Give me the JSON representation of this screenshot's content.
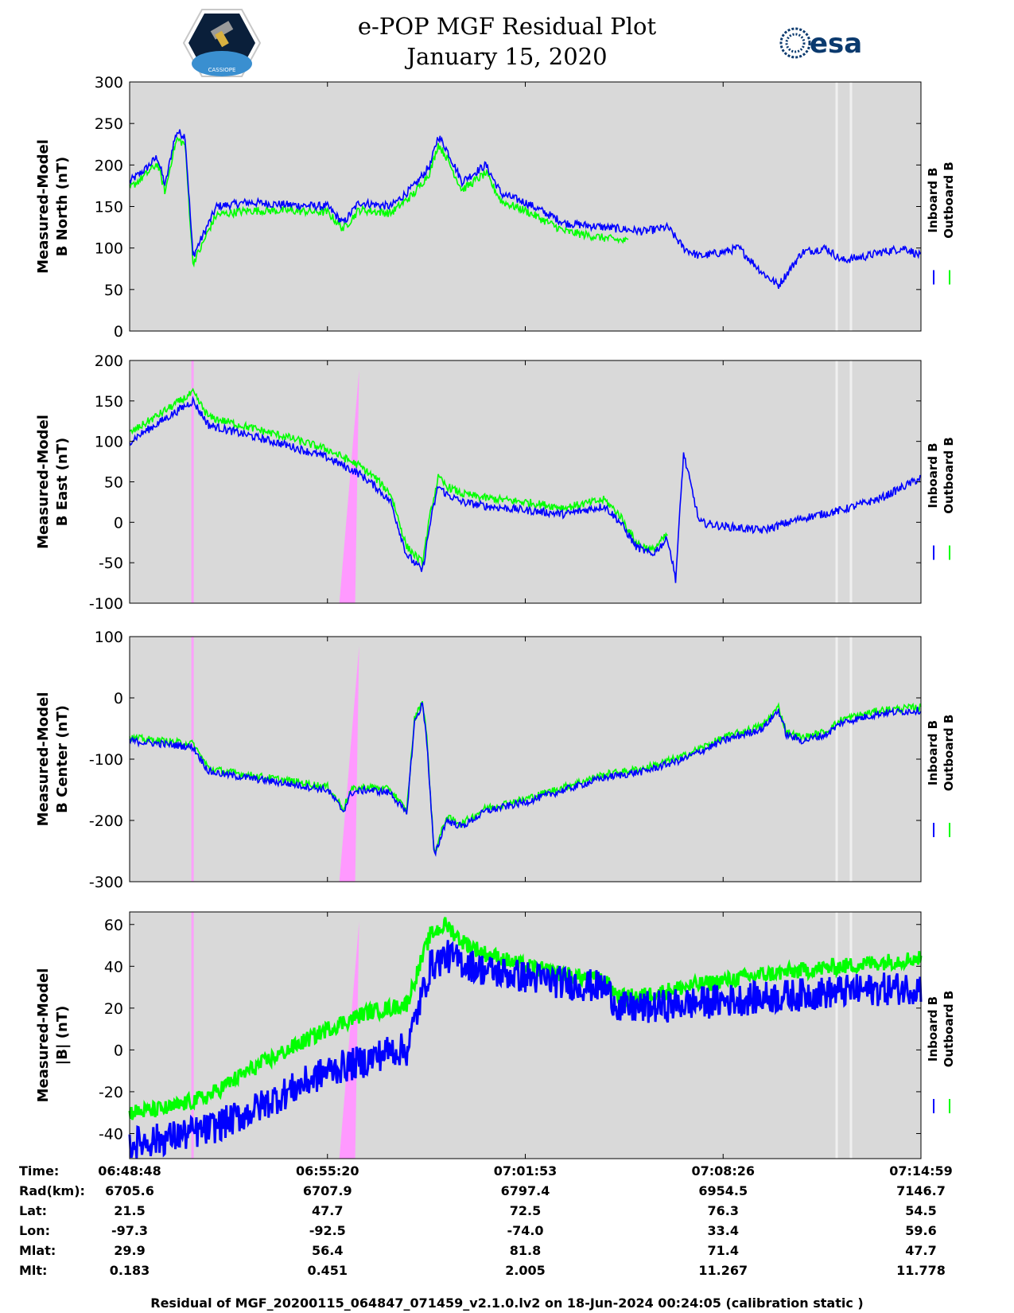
{
  "header": {
    "title": "e-POP MGF Residual Plot",
    "date": "January 15, 2020",
    "left_logo_text": "CASSIOPE",
    "right_logo_text": "esa"
  },
  "colors": {
    "background": "#d9d9d9",
    "inboard": "#0000ff",
    "outboard": "#00ff00",
    "highlight": "#ff99ff",
    "gap": "#f0f0f0"
  },
  "chart_data": [
    {
      "type": "line",
      "ylabel_line1": "Measured-Model",
      "ylabel_line2": "B North (nT)",
      "ylim": [
        0,
        300
      ],
      "yticks": [
        "300",
        "250",
        "200",
        "150",
        "100",
        "50",
        "0"
      ],
      "xlim": [
        0,
        1
      ],
      "legend": [
        "Inboard B",
        "Outboard B"
      ],
      "series": [
        {
          "name": "Inboard B",
          "x": [
            0,
            0.02,
            0.035,
            0.045,
            0.055,
            0.06,
            0.07,
            0.08,
            0.09,
            0.1,
            0.11,
            0.15,
            0.2,
            0.25,
            0.27,
            0.29,
            0.33,
            0.36,
            0.38,
            0.39,
            0.4,
            0.42,
            0.45,
            0.47,
            0.5,
            0.52,
            0.55,
            0.6,
            0.65,
            0.68,
            0.7,
            0.72,
            0.75,
            0.77,
            0.8,
            0.82,
            0.85,
            0.88,
            0.9,
            0.93,
            0.95,
            0.98,
            1.0
          ],
          "y": [
            180,
            195,
            210,
            175,
            225,
            240,
            235,
            90,
            110,
            130,
            150,
            155,
            152,
            150,
            130,
            155,
            150,
            175,
            200,
            235,
            220,
            180,
            200,
            165,
            155,
            145,
            130,
            125,
            120,
            125,
            100,
            90,
            95,
            100,
            70,
            55,
            95,
            100,
            85,
            90,
            95,
            100,
            90
          ],
          "noise": 5
        },
        {
          "name": "Outboard B",
          "x": [
            0,
            0.02,
            0.035,
            0.045,
            0.055,
            0.06,
            0.07,
            0.08,
            0.09,
            0.1,
            0.11,
            0.15,
            0.2,
            0.25,
            0.27,
            0.29,
            0.33,
            0.36,
            0.38,
            0.39,
            0.4,
            0.42,
            0.45,
            0.47,
            0.5,
            0.52,
            0.55,
            0.6,
            0.63
          ],
          "y": [
            172,
            188,
            202,
            167,
            216,
            231,
            225,
            82,
            100,
            122,
            140,
            145,
            145,
            143,
            123,
            146,
            142,
            166,
            192,
            225,
            210,
            170,
            190,
            156,
            145,
            135,
            120,
            112,
            108
          ],
          "noise": 5
        }
      ]
    },
    {
      "type": "line",
      "ylabel_line1": "Measured-Model",
      "ylabel_line2": "B East (nT)",
      "ylim": [
        -100,
        200
      ],
      "yticks": [
        "200",
        "150",
        "100",
        "50",
        "0",
        "-50",
        "-100"
      ],
      "xlim": [
        0,
        1
      ],
      "legend": [
        "Inboard B",
        "Outboard B"
      ],
      "series": [
        {
          "name": "Inboard B",
          "x": [
            0,
            0.04,
            0.08,
            0.1,
            0.14,
            0.2,
            0.25,
            0.27,
            0.29,
            0.31,
            0.33,
            0.35,
            0.37,
            0.38,
            0.39,
            0.4,
            0.42,
            0.45,
            0.5,
            0.55,
            0.6,
            0.62,
            0.64,
            0.66,
            0.68,
            0.69,
            0.7,
            0.72,
            0.75,
            0.8,
            0.85,
            0.9,
            0.95,
            1.0
          ],
          "y": [
            100,
            125,
            150,
            120,
            110,
            95,
            80,
            70,
            60,
            45,
            25,
            -40,
            -60,
            0,
            45,
            35,
            25,
            20,
            15,
            10,
            20,
            0,
            -30,
            -40,
            -20,
            -70,
            85,
            0,
            -5,
            -10,
            5,
            15,
            30,
            55
          ],
          "noise": 5
        },
        {
          "name": "Outboard B",
          "x": [
            0,
            0.04,
            0.08,
            0.1,
            0.14,
            0.2,
            0.25,
            0.27,
            0.29,
            0.31,
            0.33,
            0.35,
            0.37,
            0.38,
            0.39,
            0.4,
            0.42,
            0.45,
            0.5,
            0.55,
            0.6,
            0.62,
            0.64,
            0.66,
            0.68
          ],
          "y": [
            110,
            135,
            160,
            130,
            120,
            105,
            90,
            80,
            70,
            55,
            35,
            -30,
            -50,
            10,
            55,
            45,
            35,
            30,
            25,
            18,
            28,
            8,
            -25,
            -35,
            -15
          ],
          "noise": 5
        }
      ]
    },
    {
      "type": "line",
      "ylabel_line1": "Measured-Model",
      "ylabel_line2": "B Center (nT)",
      "ylim": [
        -300,
        100
      ],
      "yticks": [
        "100",
        "0",
        "-100",
        "-200",
        "-300"
      ],
      "xlim": [
        0,
        1
      ],
      "legend": [
        "Inboard B",
        "Outboard B"
      ],
      "series": [
        {
          "name": "Inboard B",
          "x": [
            0,
            0.04,
            0.08,
            0.1,
            0.12,
            0.2,
            0.25,
            0.27,
            0.28,
            0.3,
            0.33,
            0.35,
            0.36,
            0.37,
            0.375,
            0.385,
            0.4,
            0.42,
            0.45,
            0.5,
            0.55,
            0.6,
            0.65,
            0.7,
            0.75,
            0.8,
            0.82,
            0.83,
            0.85,
            0.88,
            0.9,
            0.95,
            1.0
          ],
          "y": [
            -70,
            -75,
            -80,
            -120,
            -125,
            -140,
            -150,
            -185,
            -155,
            -150,
            -155,
            -190,
            -40,
            -10,
            -60,
            -260,
            -200,
            -210,
            -185,
            -170,
            -150,
            -130,
            -120,
            -100,
            -70,
            -50,
            -20,
            -60,
            -70,
            -60,
            -40,
            -25,
            -20
          ],
          "noise": 6
        },
        {
          "name": "Outboard B",
          "x": [
            0,
            0.04,
            0.08,
            0.1,
            0.12,
            0.2,
            0.25,
            0.27,
            0.28,
            0.3,
            0.33,
            0.35,
            0.36,
            0.37,
            0.375,
            0.385,
            0.4,
            0.42,
            0.45,
            0.5,
            0.55,
            0.6,
            0.65,
            0.7,
            0.75,
            0.8,
            0.82,
            0.83,
            0.85,
            0.88,
            0.9,
            0.95,
            1.0
          ],
          "y": [
            -65,
            -70,
            -75,
            -115,
            -120,
            -135,
            -145,
            -180,
            -150,
            -145,
            -150,
            -185,
            -35,
            -5,
            -55,
            -255,
            -195,
            -205,
            -180,
            -165,
            -145,
            -125,
            -115,
            -95,
            -65,
            -45,
            -15,
            -55,
            -65,
            -55,
            -35,
            -20,
            -15
          ],
          "noise": 6
        }
      ]
    },
    {
      "type": "line",
      "ylabel_line1": "Measured-Model",
      "ylabel_line2": "|B| (nT)",
      "ylim": [
        -52,
        66
      ],
      "yticks": [
        "60",
        "40",
        "20",
        "0",
        "-20",
        "-40"
      ],
      "xlim": [
        0,
        1
      ],
      "legend": [
        "Inboard B",
        "Outboard B"
      ],
      "series": [
        {
          "name": "Inboard B",
          "x": [
            0,
            0.05,
            0.1,
            0.15,
            0.2,
            0.25,
            0.3,
            0.33,
            0.35,
            0.38,
            0.4,
            0.42,
            0.45,
            0.5,
            0.55,
            0.6,
            0.62,
            0.65,
            0.7,
            0.8,
            0.9,
            1.0
          ],
          "y": [
            -45,
            -42,
            -38,
            -30,
            -20,
            -10,
            -5,
            0,
            0,
            40,
            45,
            42,
            38,
            35,
            32,
            30,
            20,
            20,
            22,
            25,
            28,
            30
          ],
          "noise": 8
        },
        {
          "name": "Outboard B",
          "x": [
            0,
            0.05,
            0.1,
            0.15,
            0.2,
            0.25,
            0.3,
            0.33,
            0.35,
            0.38,
            0.4,
            0.42,
            0.45,
            0.5,
            0.55,
            0.6,
            0.62,
            0.65,
            0.7,
            0.8,
            0.9,
            1.0
          ],
          "y": [
            -30,
            -28,
            -22,
            -10,
            0,
            10,
            18,
            20,
            22,
            55,
            60,
            52,
            46,
            40,
            36,
            33,
            25,
            26,
            30,
            36,
            40,
            44
          ],
          "noise": 4
        }
      ]
    }
  ],
  "time_axis": {
    "tick_positions": [
      0,
      0.25,
      0.5,
      0.75,
      1.0
    ],
    "labels": [
      "Time:",
      "Rad(km):",
      "Lat:",
      "Lon:",
      "Mlat:",
      "Mlt:"
    ],
    "columns": [
      [
        "06:48:48",
        "6705.6",
        "21.5",
        "-97.3",
        "29.9",
        "0.183"
      ],
      [
        "06:55:20",
        "6707.9",
        "47.7",
        "-92.5",
        "56.4",
        "0.451"
      ],
      [
        "07:01:53",
        "6797.4",
        "72.5",
        "-74.0",
        "81.8",
        "2.005"
      ],
      [
        "07:08:26",
        "6954.5",
        "76.3",
        "33.4",
        "71.4",
        "11.267"
      ],
      [
        "07:14:59",
        "7146.7",
        "54.5",
        "59.6",
        "47.7",
        "11.778"
      ]
    ]
  },
  "footer": "Residual of MGF_20200115_064847_071459_v2.1.0.lv2 on 18-Jun-2024 00:24:05 (calibration static )"
}
